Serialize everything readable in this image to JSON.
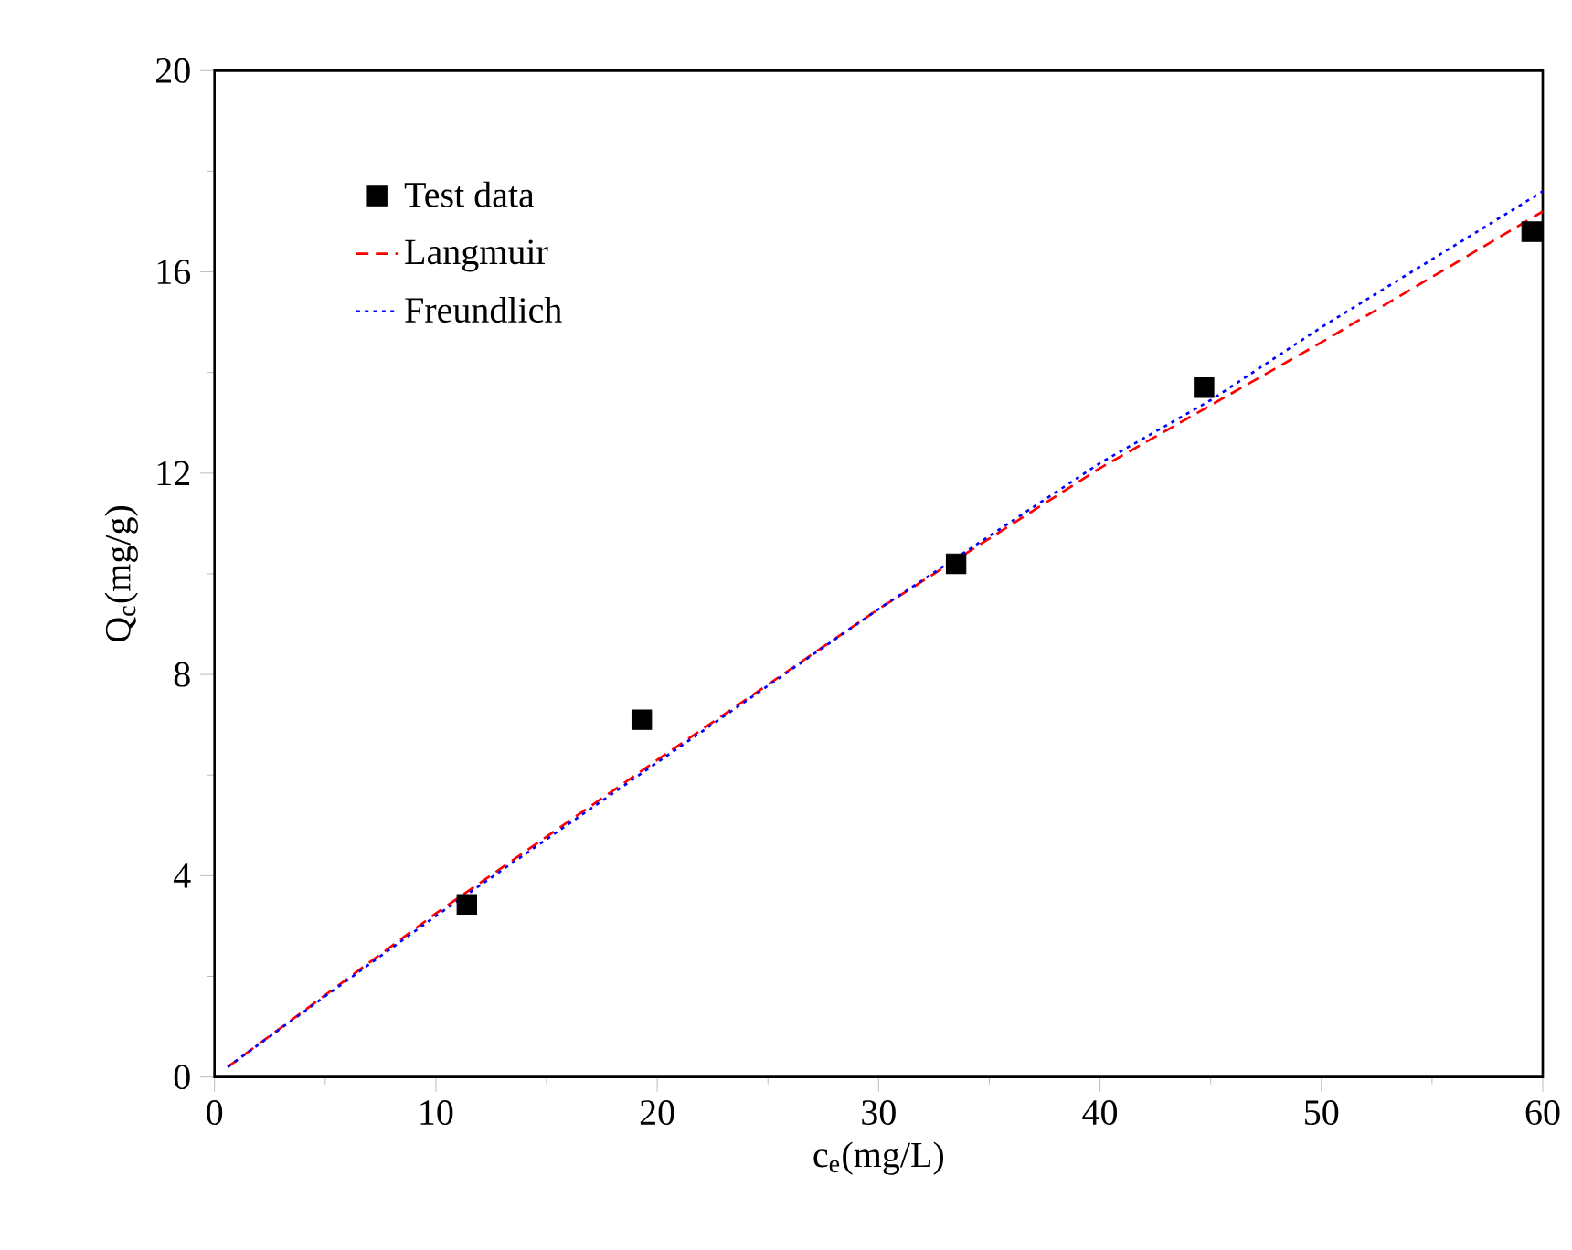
{
  "chart_data": {
    "type": "scatter",
    "xlabel": "c$_{e}$(mg/L)",
    "ylabel": "Q$_{c}$(mg/g)",
    "xlim": [
      0,
      60
    ],
    "ylim": [
      0,
      20
    ],
    "xticks": [
      0,
      10,
      20,
      30,
      40,
      50,
      60
    ],
    "yticks": [
      0,
      4,
      8,
      12,
      16,
      20
    ],
    "grid": false,
    "legend": "top left",
    "series": [
      {
        "name": "Test data",
        "marker": "square",
        "color": "#000000",
        "x": [
          11.4,
          19.3,
          33.5,
          44.7,
          59.5
        ],
        "values": [
          3.43,
          7.1,
          10.2,
          13.7,
          16.8
        ]
      },
      {
        "name": "Langmuir",
        "type": "line",
        "line_style": "dashed",
        "marker": "none",
        "color": "#ff0000",
        "x": [
          0.6,
          10,
          20,
          30,
          40,
          45,
          50,
          60
        ],
        "values": [
          0.2,
          3.25,
          6.3,
          9.3,
          12.1,
          13.35,
          14.6,
          17.2
        ]
      },
      {
        "name": "Freundlich",
        "type": "line",
        "line_style": "dotted",
        "marker": "none",
        "color": "#0000ff",
        "x": [
          0.6,
          10,
          20,
          30,
          40,
          45,
          50,
          60
        ],
        "values": [
          0.2,
          3.2,
          6.25,
          9.3,
          12.2,
          13.45,
          14.9,
          17.6
        ]
      }
    ]
  }
}
